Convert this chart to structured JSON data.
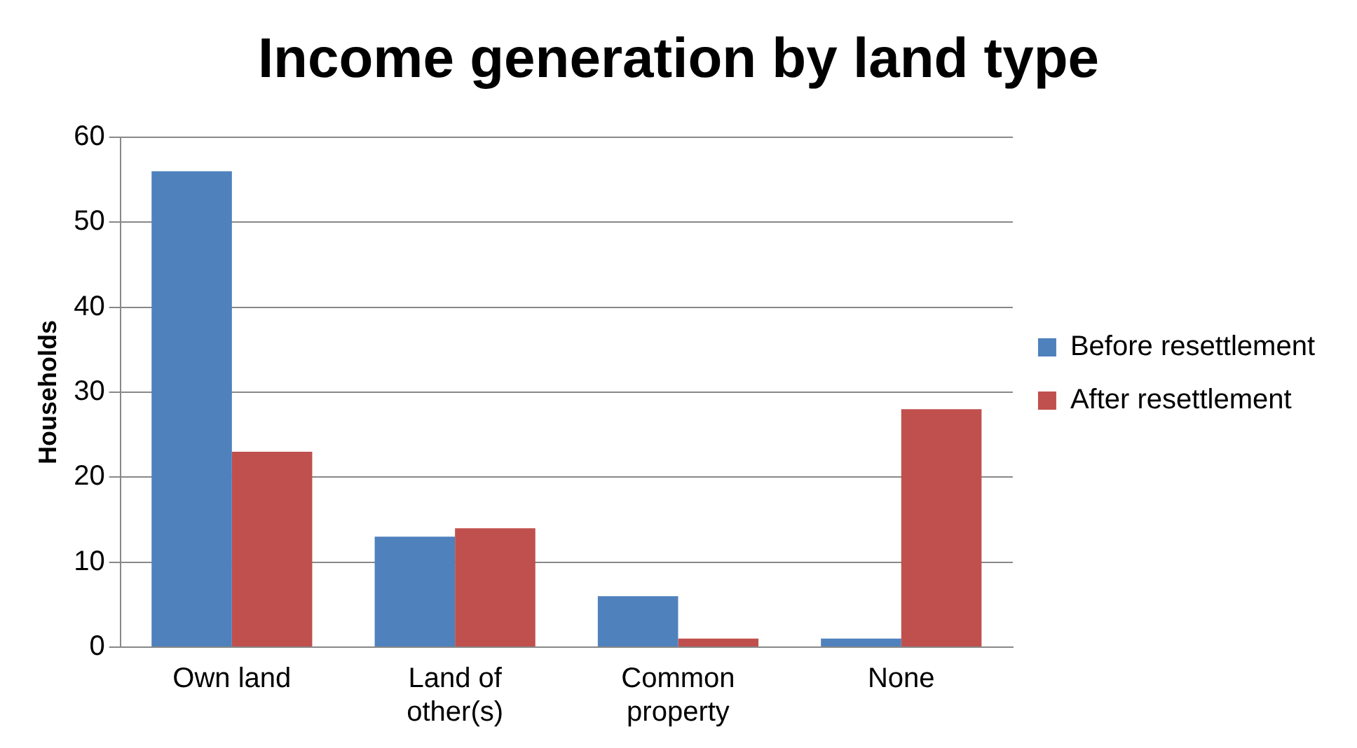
{
  "chart_data": {
    "type": "bar",
    "title": "Income generation by land type",
    "ylabel": "Households",
    "categories": [
      "Own land",
      "Land of other(s)",
      "Common property",
      "None"
    ],
    "series": [
      {
        "name": "Before resettlement",
        "color": "#4f81bd",
        "values": [
          56,
          13,
          6,
          1
        ]
      },
      {
        "name": "After resettlement",
        "color": "#c0504d",
        "values": [
          23,
          14,
          1,
          28
        ]
      }
    ],
    "ylim": [
      0,
      60
    ],
    "yticks": [
      0,
      10,
      20,
      30,
      40,
      50,
      60
    ],
    "grid": "y",
    "legend": "right"
  }
}
